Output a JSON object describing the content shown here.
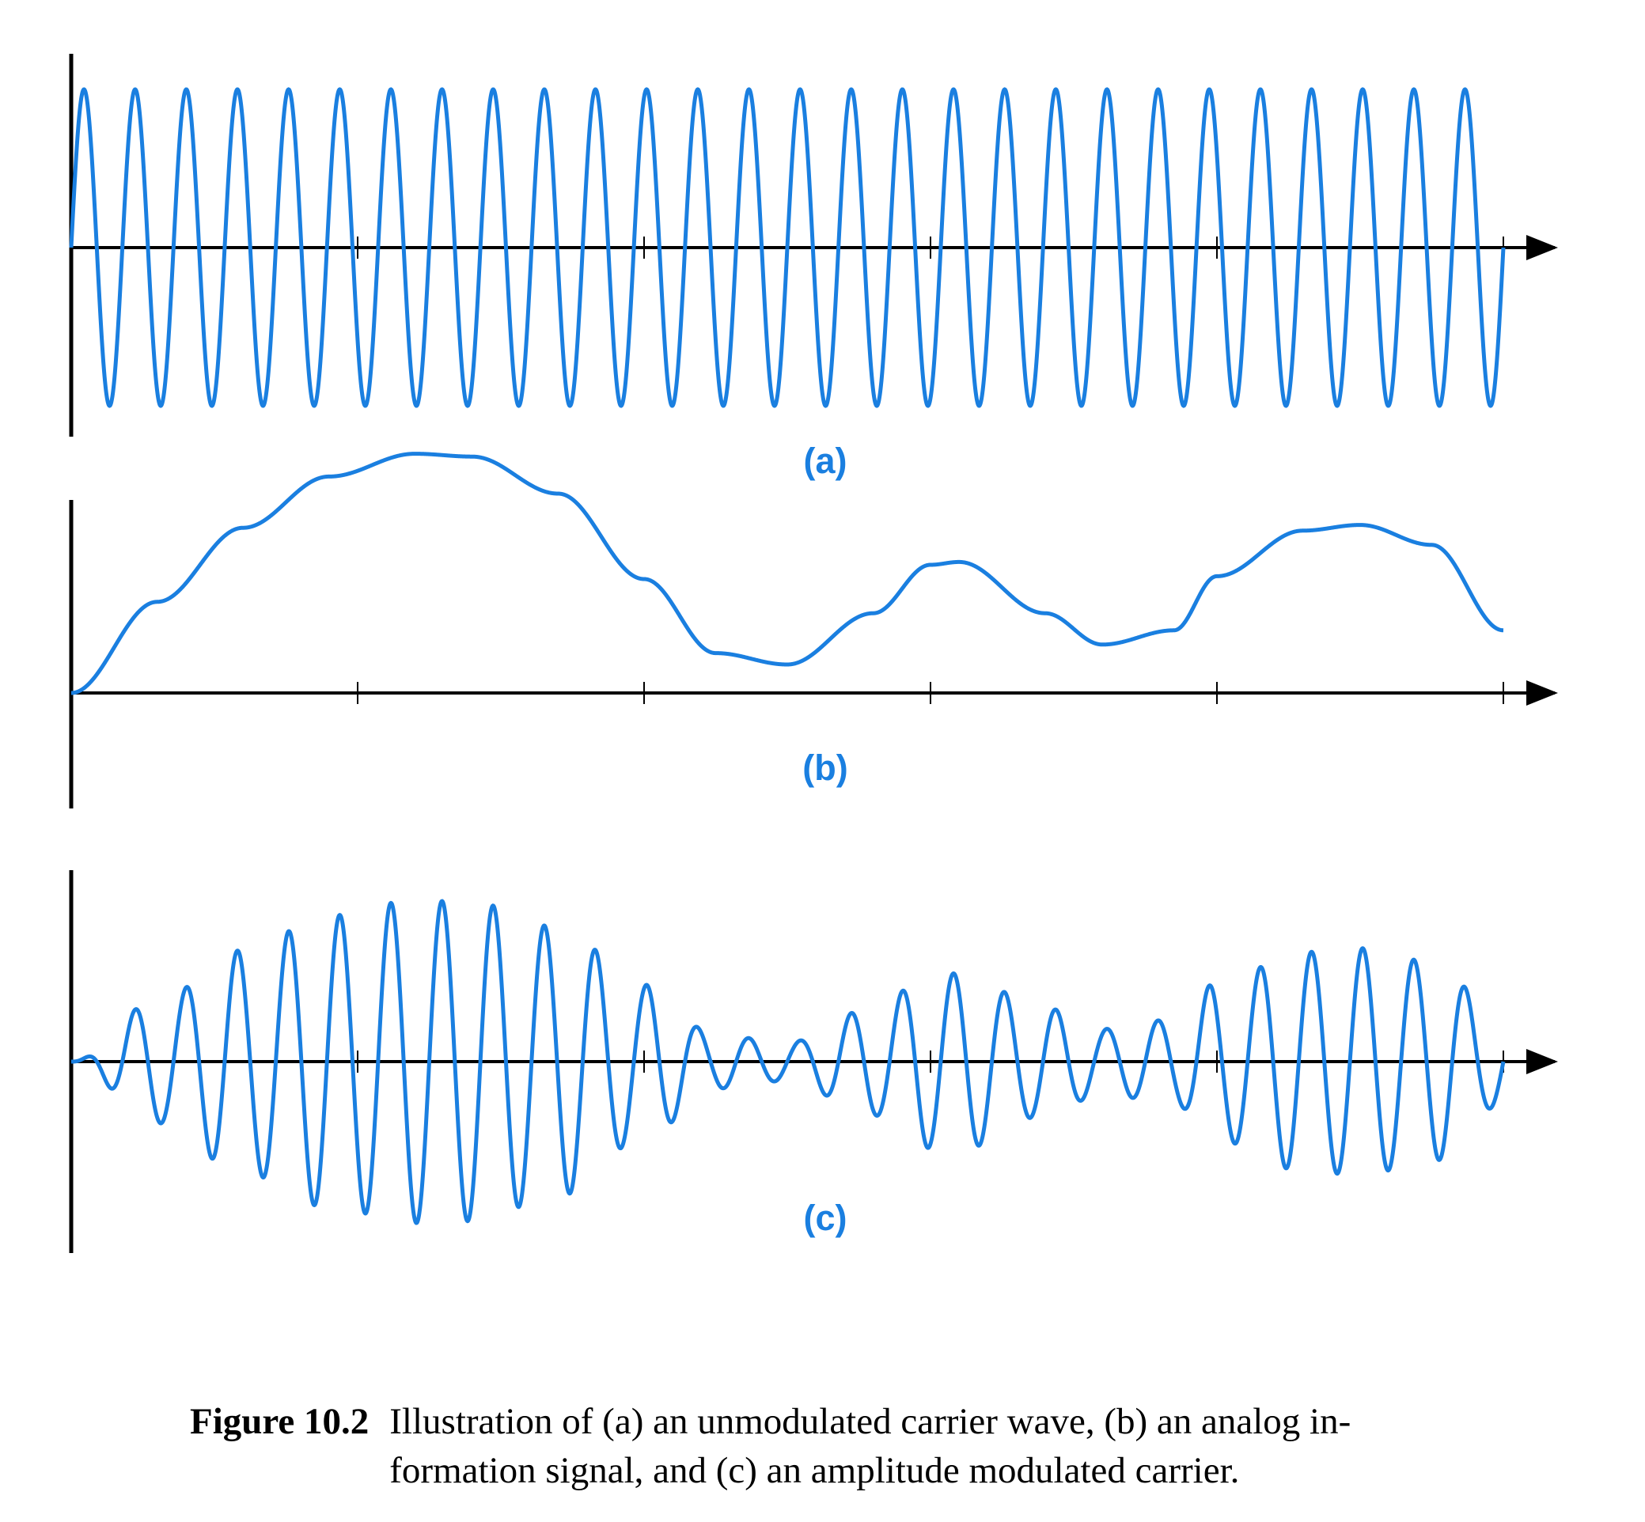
{
  "colors": {
    "wave": "#1a7fe0",
    "axis": "#000000",
    "label": "#1a7fe0"
  },
  "chart_data": [
    {
      "type": "line",
      "panel_label": "(a)",
      "description_kind": "unmodulated carrier",
      "x_range": [
        0,
        5
      ],
      "x_ticks": [
        1,
        2,
        3,
        4,
        5
      ],
      "ylim": [
        -1,
        1
      ],
      "carrier_cycles": 28,
      "series": [
        {
          "amplitude": 1.0
        }
      ]
    },
    {
      "type": "line",
      "panel_label": "(b)",
      "description_kind": "information signal",
      "x_range": [
        0,
        5
      ],
      "x_ticks": [
        1,
        2,
        3,
        4,
        5
      ],
      "ylim": [
        0,
        1
      ],
      "series": [
        {
          "x": [
            0,
            0.3,
            0.6,
            0.9,
            1.2,
            1.4,
            1.7,
            2.0,
            2.25,
            2.5,
            2.8,
            3.0,
            3.1,
            3.4,
            3.6,
            3.85,
            4.0,
            4.3,
            4.5,
            4.75,
            5.0
          ],
          "y": [
            0.0,
            0.32,
            0.58,
            0.76,
            0.84,
            0.83,
            0.7,
            0.4,
            0.14,
            0.1,
            0.28,
            0.45,
            0.46,
            0.28,
            0.17,
            0.22,
            0.41,
            0.57,
            0.59,
            0.52,
            0.22
          ]
        }
      ]
    },
    {
      "type": "line",
      "panel_label": "(c)",
      "description_kind": "amplitude modulated carrier",
      "x_range": [
        0,
        5
      ],
      "x_ticks": [
        1,
        2,
        3,
        4,
        5
      ],
      "ylim": [
        -1,
        1
      ],
      "carrier_cycles": 28,
      "envelope_source": 1,
      "series": [
        {
          "modulation": "envelope = signal (b)"
        }
      ]
    }
  ],
  "caption": {
    "label": "Figure 10.2",
    "line1": "Illustration of (a) an unmodulated carrier wave, (b) an analog in-",
    "line2": "formation signal, and (c) an amplitude modulated carrier."
  }
}
